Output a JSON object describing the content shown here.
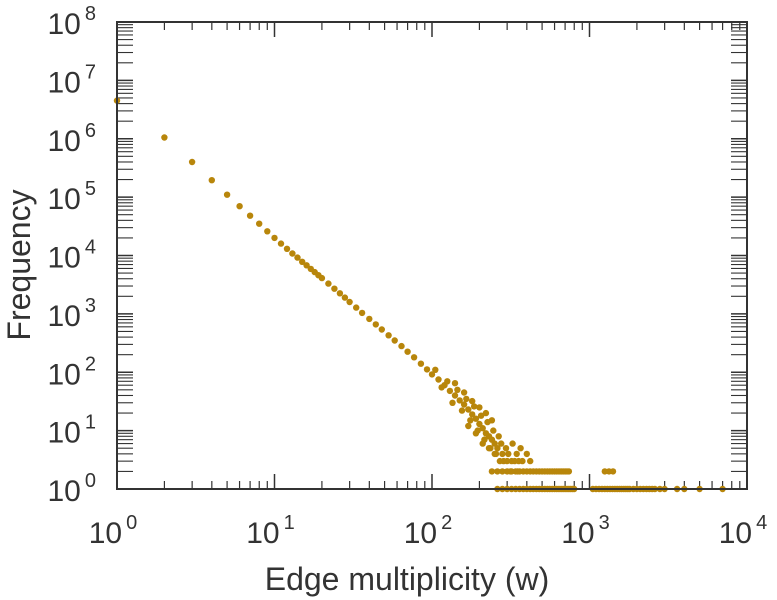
{
  "chart_data": {
    "type": "scatter",
    "title": "",
    "xlabel": "Edge multiplicity (w)",
    "ylabel": "Frequency",
    "x_scale": "log",
    "y_scale": "log",
    "xlim": [
      1,
      10000
    ],
    "ylim": [
      1,
      100000000
    ],
    "grid": false,
    "marker_color": "#B8860B",
    "x_ticks": [
      {
        "base": "10",
        "exp": "0"
      },
      {
        "base": "10",
        "exp": "1"
      },
      {
        "base": "10",
        "exp": "2"
      },
      {
        "base": "10",
        "exp": "3"
      },
      {
        "base": "10",
        "exp": "4"
      }
    ],
    "y_ticks": [
      {
        "base": "10",
        "exp": "0"
      },
      {
        "base": "10",
        "exp": "1"
      },
      {
        "base": "10",
        "exp": "2"
      },
      {
        "base": "10",
        "exp": "3"
      },
      {
        "base": "10",
        "exp": "4"
      },
      {
        "base": "10",
        "exp": "5"
      },
      {
        "base": "10",
        "exp": "6"
      },
      {
        "base": "10",
        "exp": "7"
      },
      {
        "base": "10",
        "exp": "8"
      }
    ],
    "series": [
      {
        "points": [
          [
            1,
            4500000
          ],
          [
            2,
            1050000
          ],
          [
            3,
            400000
          ],
          [
            4,
            195000
          ],
          [
            5,
            110000
          ],
          [
            6,
            70000
          ],
          [
            7,
            48000
          ],
          [
            8,
            35000
          ],
          [
            9,
            26000
          ],
          [
            10,
            20000
          ],
          [
            11,
            16000
          ],
          [
            12,
            13000
          ],
          [
            13,
            10800
          ],
          [
            14,
            9200
          ],
          [
            15,
            7800
          ],
          [
            16,
            6800
          ],
          [
            17,
            5900
          ],
          [
            18,
            5200
          ],
          [
            19,
            4600
          ],
          [
            20,
            4100
          ],
          [
            22,
            3300
          ],
          [
            24,
            2700
          ],
          [
            26,
            2250
          ],
          [
            28,
            1900
          ],
          [
            30,
            1600
          ],
          [
            33,
            1280
          ],
          [
            36,
            1040
          ],
          [
            40,
            820
          ],
          [
            44,
            660
          ],
          [
            48,
            540
          ],
          [
            53,
            430
          ],
          [
            58,
            350
          ],
          [
            64,
            280
          ],
          [
            70,
            225
          ],
          [
            77,
            180
          ],
          [
            85,
            140
          ],
          [
            93,
            112
          ],
          [
            100,
            92
          ],
          [
            110,
            75
          ],
          [
            120,
            60
          ],
          [
            130,
            48
          ],
          [
            140,
            40
          ],
          [
            150,
            33
          ],
          [
            160,
            28
          ],
          [
            170,
            23
          ],
          [
            180,
            19
          ],
          [
            190,
            16
          ],
          [
            200,
            13
          ],
          [
            210,
            11
          ],
          [
            220,
            9
          ],
          [
            230,
            8
          ],
          [
            240,
            7
          ],
          [
            250,
            6
          ],
          [
            260,
            5
          ],
          [
            280,
            4
          ],
          [
            300,
            3
          ],
          [
            320,
            3
          ],
          [
            350,
            2
          ],
          [
            380,
            2
          ],
          [
            105,
            110
          ],
          [
            115,
            55
          ],
          [
            125,
            70
          ],
          [
            135,
            30
          ],
          [
            145,
            50
          ],
          [
            155,
            22
          ],
          [
            165,
            35
          ],
          [
            175,
            15
          ],
          [
            185,
            26
          ],
          [
            195,
            10
          ],
          [
            205,
            18
          ],
          [
            215,
            7
          ],
          [
            225,
            14
          ],
          [
            235,
            5
          ],
          [
            245,
            10
          ],
          [
            255,
            4
          ],
          [
            265,
            8
          ],
          [
            275,
            6
          ],
          [
            285,
            3
          ],
          [
            295,
            5
          ],
          [
            305,
            4
          ],
          [
            315,
            2
          ],
          [
            325,
            6
          ],
          [
            335,
            3
          ],
          [
            345,
            4
          ],
          [
            355,
            3
          ],
          [
            365,
            5
          ],
          [
            375,
            3
          ],
          [
            400,
            4
          ],
          [
            420,
            3
          ],
          [
            140,
            65
          ],
          [
            160,
            45
          ],
          [
            180,
            32
          ],
          [
            200,
            25
          ],
          [
            220,
            20
          ],
          [
            240,
            15
          ],
          [
            170,
            12
          ],
          [
            190,
            9
          ],
          [
            210,
            6
          ],
          [
            230,
            5
          ],
          [
            250,
            4
          ],
          [
            270,
            3
          ],
          [
            240,
            2
          ],
          [
            260,
            2
          ],
          [
            280,
            2
          ],
          [
            300,
            2
          ],
          [
            320,
            2
          ],
          [
            340,
            2
          ],
          [
            360,
            2
          ],
          [
            400,
            2
          ],
          [
            420,
            2
          ],
          [
            440,
            2
          ],
          [
            460,
            2
          ],
          [
            480,
            2
          ],
          [
            500,
            2
          ],
          [
            520,
            2
          ],
          [
            540,
            2
          ],
          [
            560,
            2
          ],
          [
            580,
            2
          ],
          [
            600,
            2
          ],
          [
            620,
            2
          ],
          [
            640,
            2
          ],
          [
            660,
            2
          ],
          [
            680,
            2
          ],
          [
            700,
            2
          ],
          [
            720,
            2
          ],
          [
            740,
            2
          ],
          [
            1250,
            2
          ],
          [
            1330,
            2
          ],
          [
            1410,
            2
          ],
          [
            260,
            1
          ],
          [
            280,
            1
          ],
          [
            300,
            1
          ],
          [
            320,
            1
          ],
          [
            340,
            1
          ],
          [
            360,
            1
          ],
          [
            380,
            1
          ],
          [
            400,
            1
          ],
          [
            420,
            1
          ],
          [
            440,
            1
          ],
          [
            460,
            1
          ],
          [
            480,
            1
          ],
          [
            500,
            1
          ],
          [
            520,
            1
          ],
          [
            540,
            1
          ],
          [
            560,
            1
          ],
          [
            580,
            1
          ],
          [
            600,
            1
          ],
          [
            620,
            1
          ],
          [
            640,
            1
          ],
          [
            660,
            1
          ],
          [
            680,
            1
          ],
          [
            700,
            1
          ],
          [
            720,
            1
          ],
          [
            740,
            1
          ],
          [
            760,
            1
          ],
          [
            780,
            1
          ],
          [
            800,
            1
          ],
          [
            1050,
            1
          ],
          [
            1100,
            1
          ],
          [
            1150,
            1
          ],
          [
            1200,
            1
          ],
          [
            1250,
            1
          ],
          [
            1300,
            1
          ],
          [
            1350,
            1
          ],
          [
            1400,
            1
          ],
          [
            1450,
            1
          ],
          [
            1500,
            1
          ],
          [
            1550,
            1
          ],
          [
            1600,
            1
          ],
          [
            1650,
            1
          ],
          [
            1700,
            1
          ],
          [
            1750,
            1
          ],
          [
            1800,
            1
          ],
          [
            1900,
            1
          ],
          [
            2000,
            1
          ],
          [
            2100,
            1
          ],
          [
            2200,
            1
          ],
          [
            2300,
            1
          ],
          [
            2400,
            1
          ],
          [
            2500,
            1
          ],
          [
            2600,
            1
          ],
          [
            2800,
            1
          ],
          [
            3000,
            1
          ],
          [
            3600,
            1
          ],
          [
            4000,
            1
          ],
          [
            5000,
            1
          ],
          [
            7000,
            1
          ]
        ]
      }
    ]
  }
}
